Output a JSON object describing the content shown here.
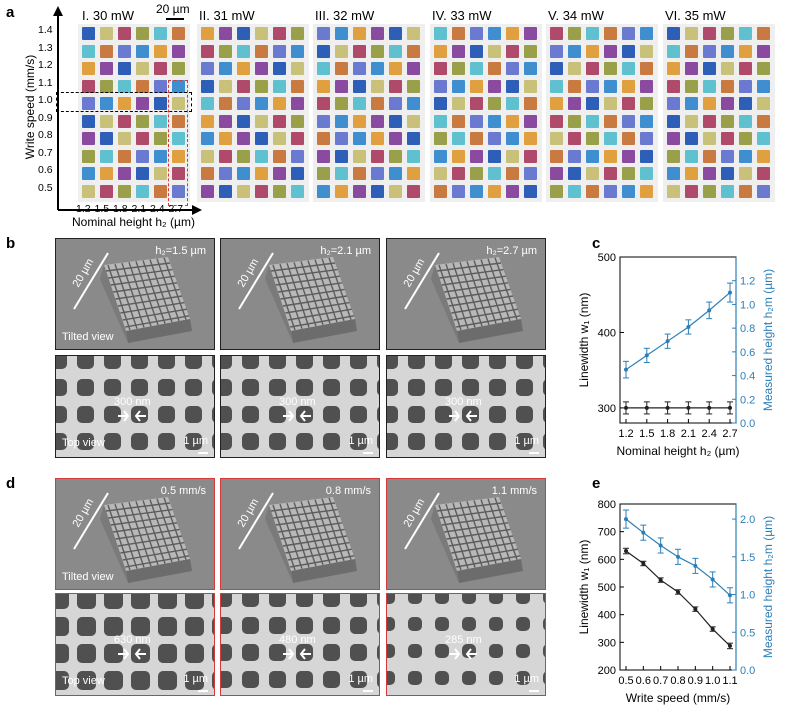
{
  "panel_a": {
    "label": "a",
    "scale_bar": "20 µm",
    "titles": [
      "I. 30 mW",
      "II. 31 mW",
      "III. 32 mW",
      "IV. 33 mW",
      "V. 34 mW",
      "VI. 35 mW"
    ],
    "y_axis_label": "Write speed (mm/s)",
    "y_ticks": [
      "1.4",
      "1.3",
      "1.2",
      "1.1",
      "1.0",
      "0.9",
      "0.8",
      "0.7",
      "0.6",
      "0.5"
    ],
    "x_ticks": [
      "1.2",
      "1.5",
      "1.8",
      "2.1",
      "2.4",
      "2.7"
    ],
    "x_axis_label": "Nominal height h₂ (µm)",
    "palette": [
      "#2e5fb8",
      "#3f8fd0",
      "#5fc0cf",
      "#c9c17a",
      "#e0a040",
      "#c87a40",
      "#b04a6a",
      "#8a4aa0",
      "#6a7ad0",
      "#9aa04a"
    ]
  },
  "panel_b": {
    "label": "b",
    "tilted": [
      "h₂=1.5 µm",
      "h₂=2.1 µm",
      "h₂=2.7 µm"
    ],
    "scale_20": "20 µm",
    "tilted_view": "Tilted view",
    "top_view": "Top view",
    "top_widths": [
      "300 nm",
      "300 nm",
      "300 nm"
    ],
    "scale_1": "1 µm"
  },
  "panel_d": {
    "label": "d",
    "tilted": [
      "0.5 mm/s",
      "0.8 mm/s",
      "1.1 mm/s"
    ],
    "scale_20": "20 µm",
    "tilted_view": "Tilted view",
    "top_view": "Top view",
    "top_widths": [
      "630 nm",
      "480 nm",
      "285 nm"
    ],
    "scale_1": "1 µm"
  },
  "chart_data": [
    {
      "panel": "c",
      "type": "line",
      "x": [
        1.2,
        1.5,
        1.8,
        2.1,
        2.4,
        2.7
      ],
      "xlabel": "Nominal height h₂ (µm)",
      "ylabel": "Linewidth w₁ (nm)",
      "ylabel_right": "Measured height h₂m (µm)",
      "ylim": [
        280,
        500
      ],
      "yticks": [
        300,
        400,
        500
      ],
      "ylim_right": [
        0,
        1.4
      ],
      "yticks_right": [
        0.0,
        0.2,
        0.4,
        0.6,
        0.8,
        1.0,
        1.2
      ],
      "series": [
        {
          "axis": "left",
          "color": "#222222",
          "values": [
            300,
            300,
            300,
            300,
            300,
            300
          ],
          "err": [
            8,
            8,
            8,
            8,
            8,
            8
          ]
        },
        {
          "axis": "right",
          "color": "#2b7fb8",
          "values": [
            0.45,
            0.57,
            0.69,
            0.81,
            0.95,
            1.1
          ],
          "err": [
            0.07,
            0.06,
            0.06,
            0.06,
            0.07,
            0.08
          ]
        }
      ]
    },
    {
      "panel": "e",
      "type": "line",
      "x": [
        0.5,
        0.6,
        0.7,
        0.8,
        0.9,
        1.0,
        1.1
      ],
      "xlabel": "Write speed (mm/s)",
      "ylabel": "Linewidth w₁ (nm)",
      "ylabel_right": "Measured height h₂m (µm)",
      "ylim": [
        200,
        800
      ],
      "yticks": [
        200,
        300,
        400,
        500,
        600,
        700,
        800
      ],
      "ylim_right": [
        0,
        2.2
      ],
      "yticks_right": [
        0.0,
        0.5,
        1.0,
        1.5,
        2.0
      ],
      "series": [
        {
          "axis": "left",
          "color": "#222222",
          "values": [
            630,
            585,
            525,
            482,
            420,
            348,
            287
          ],
          "err": [
            10,
            8,
            8,
            8,
            8,
            8,
            10
          ]
        },
        {
          "axis": "right",
          "color": "#2b7fb8",
          "values": [
            2.0,
            1.82,
            1.65,
            1.5,
            1.38,
            1.2,
            0.99
          ],
          "err": [
            0.12,
            0.1,
            0.1,
            0.1,
            0.1,
            0.1,
            0.1
          ]
        }
      ]
    }
  ]
}
